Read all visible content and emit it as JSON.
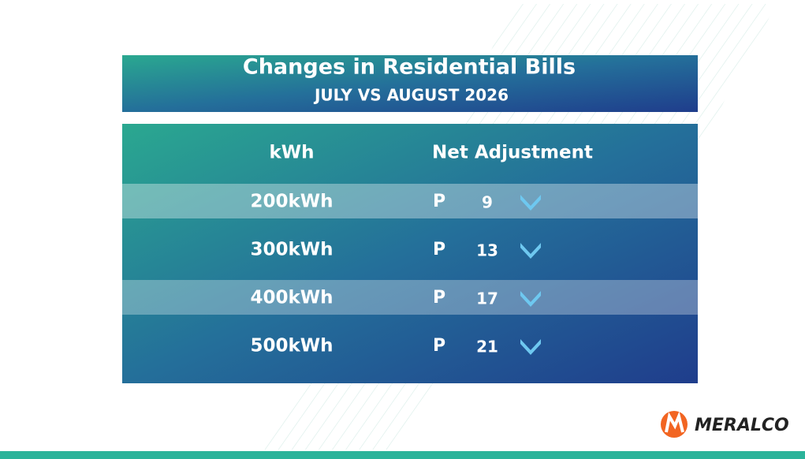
{
  "header": {
    "title": "Changes in Residential Bills",
    "subtitle": "JULY VS AUGUST 2026"
  },
  "table": {
    "columns": [
      "kWh",
      "Net Adjustment"
    ],
    "rows": [
      [
        "200kWh",
        "P",
        9
      ],
      [
        "300kWh",
        "P",
        13
      ],
      [
        "400kWh",
        "P",
        17
      ],
      [
        "500kWh",
        "P",
        21
      ]
    ]
  },
  "logo": {
    "text": "MERALCO"
  }
}
